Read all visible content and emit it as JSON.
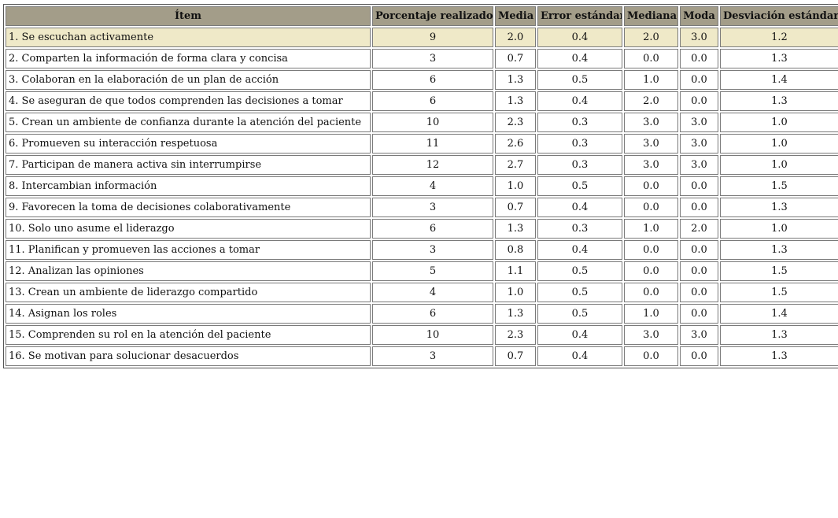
{
  "table": {
    "headers": [
      "Ítem",
      "Porcentaje realizado",
      "Media",
      "Error estándar",
      "Mediana",
      "Moda",
      "Desviación estándar"
    ],
    "rows": [
      [
        "1. Se escuchan activamente",
        "9",
        "2.0",
        "0.4",
        "2.0",
        "3.0",
        "1.2"
      ],
      [
        "2. Comparten la información de forma clara y concisa",
        "3",
        "0.7",
        "0.4",
        "0.0",
        "0.0",
        "1.3"
      ],
      [
        "3. Colaboran en la elaboración de un plan de acción",
        "6",
        "1.3",
        "0.5",
        "1.0",
        "0.0",
        "1.4"
      ],
      [
        "4. Se aseguran de que todos comprenden las decisiones a tomar",
        "6",
        "1.3",
        "0.4",
        "2.0",
        "0.0",
        "1.3"
      ],
      [
        "5. Crean un ambiente de confianza durante la atención del paciente",
        "10",
        "2.3",
        "0.3",
        "3.0",
        "3.0",
        "1.0"
      ],
      [
        "6. Promueven su interacción respetuosa",
        "11",
        "2.6",
        "0.3",
        "3.0",
        "3.0",
        "1.0"
      ],
      [
        "7. Participan de manera activa sin interrumpirse",
        "12",
        "2.7",
        "0.3",
        "3.0",
        "3.0",
        "1.0"
      ],
      [
        "8. Intercambian información",
        "4",
        "1.0",
        "0.5",
        "0.0",
        "0.0",
        "1.5"
      ],
      [
        "9. Favorecen la toma de decisiones colaborativamente",
        "3",
        "0.7",
        "0.4",
        "0.0",
        "0.0",
        "1.3"
      ],
      [
        "10. Solo uno asume el liderazgo",
        "6",
        "1.3",
        "0.3",
        "1.0",
        "2.0",
        "1.0"
      ],
      [
        "11. Planifican y promueven las acciones a tomar",
        "3",
        "0.8",
        "0.4",
        "0.0",
        "0.0",
        "1.3"
      ],
      [
        "12. Analizan las opiniones",
        "5",
        "1.1",
        "0.5",
        "0.0",
        "0.0",
        "1.5"
      ],
      [
        "13. Crean un ambiente de liderazgo compartido",
        "4",
        "1.0",
        "0.5",
        "0.0",
        "0.0",
        "1.5"
      ],
      [
        "14. Asignan los roles",
        "6",
        "1.3",
        "0.5",
        "1.0",
        "0.0",
        "1.4"
      ],
      [
        "15. Comprenden su rol en la atención del paciente",
        "10",
        "2.3",
        "0.4",
        "3.0",
        "3.0",
        "1.3"
      ],
      [
        "16. Se motivan para solucionar desacuerdos",
        "3",
        "0.7",
        "0.4",
        "0.0",
        "0.0",
        "1.3"
      ]
    ]
  }
}
